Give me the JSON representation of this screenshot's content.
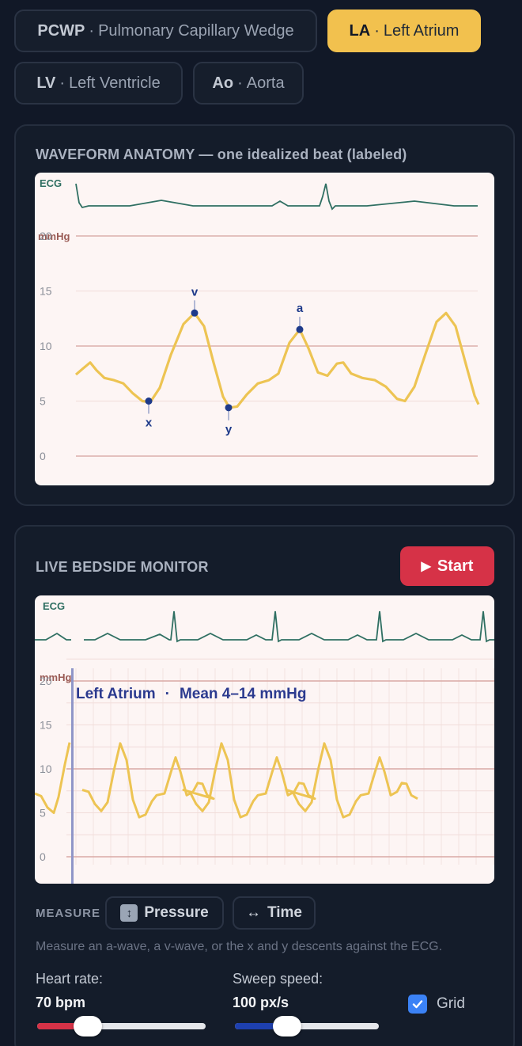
{
  "chambers": [
    {
      "abbr": "PCWP",
      "name": "Pulmonary Capillary Wedge",
      "active": false
    },
    {
      "abbr": "LA",
      "name": "Left Atrium",
      "active": true
    },
    {
      "abbr": "LV",
      "name": "Left Ventricle",
      "active": false
    },
    {
      "abbr": "Ao",
      "name": "Aorta",
      "active": false
    }
  ],
  "anatomy": {
    "title": "WAVEFORM ANATOMY — one idealized beat (labeled)",
    "ecg_label": "ECG",
    "unit_label": "mmHg",
    "y_ticks": [
      "20",
      "15",
      "10",
      "5",
      "0"
    ],
    "markers": [
      {
        "label": "x",
        "value": 5.0
      },
      {
        "label": "v",
        "value": 13.0
      },
      {
        "label": "y",
        "value": 4.4
      },
      {
        "label": "a",
        "value": 11.5
      }
    ]
  },
  "monitor": {
    "title": "LIVE BEDSIDE MONITOR",
    "start_label": "Start",
    "ecg_label": "ECG",
    "unit_label": "mmHg",
    "y_ticks": [
      "20",
      "15",
      "10",
      "5",
      "0"
    ],
    "readout_chamber": "Left Atrium",
    "readout_sep": "·",
    "readout_mean": "Mean 4–14 mmHg"
  },
  "measure": {
    "label": "MEASURE",
    "pressure_label": "Pressure",
    "time_label": "Time",
    "hint": "Measure an a-wave, a v-wave, or the x and y descents against the ECG."
  },
  "controls": {
    "heart_rate_label": "Heart rate:",
    "heart_rate_value": "70 bpm",
    "heart_rate_fraction": 0.3,
    "sweep_label": "Sweep speed:",
    "sweep_value": "100 px/s",
    "sweep_fraction": 0.36,
    "grid_label": "Grid",
    "grid_on": true
  },
  "colors": {
    "accent": "#f2c14e",
    "trace": "#edc453",
    "ecg": "#2f6f62",
    "marker": "#1e3a8a",
    "start": "#d63247",
    "hr_fill": "#d63247",
    "sweep_fill": "#1e40af",
    "check": "#3b82f6"
  }
}
